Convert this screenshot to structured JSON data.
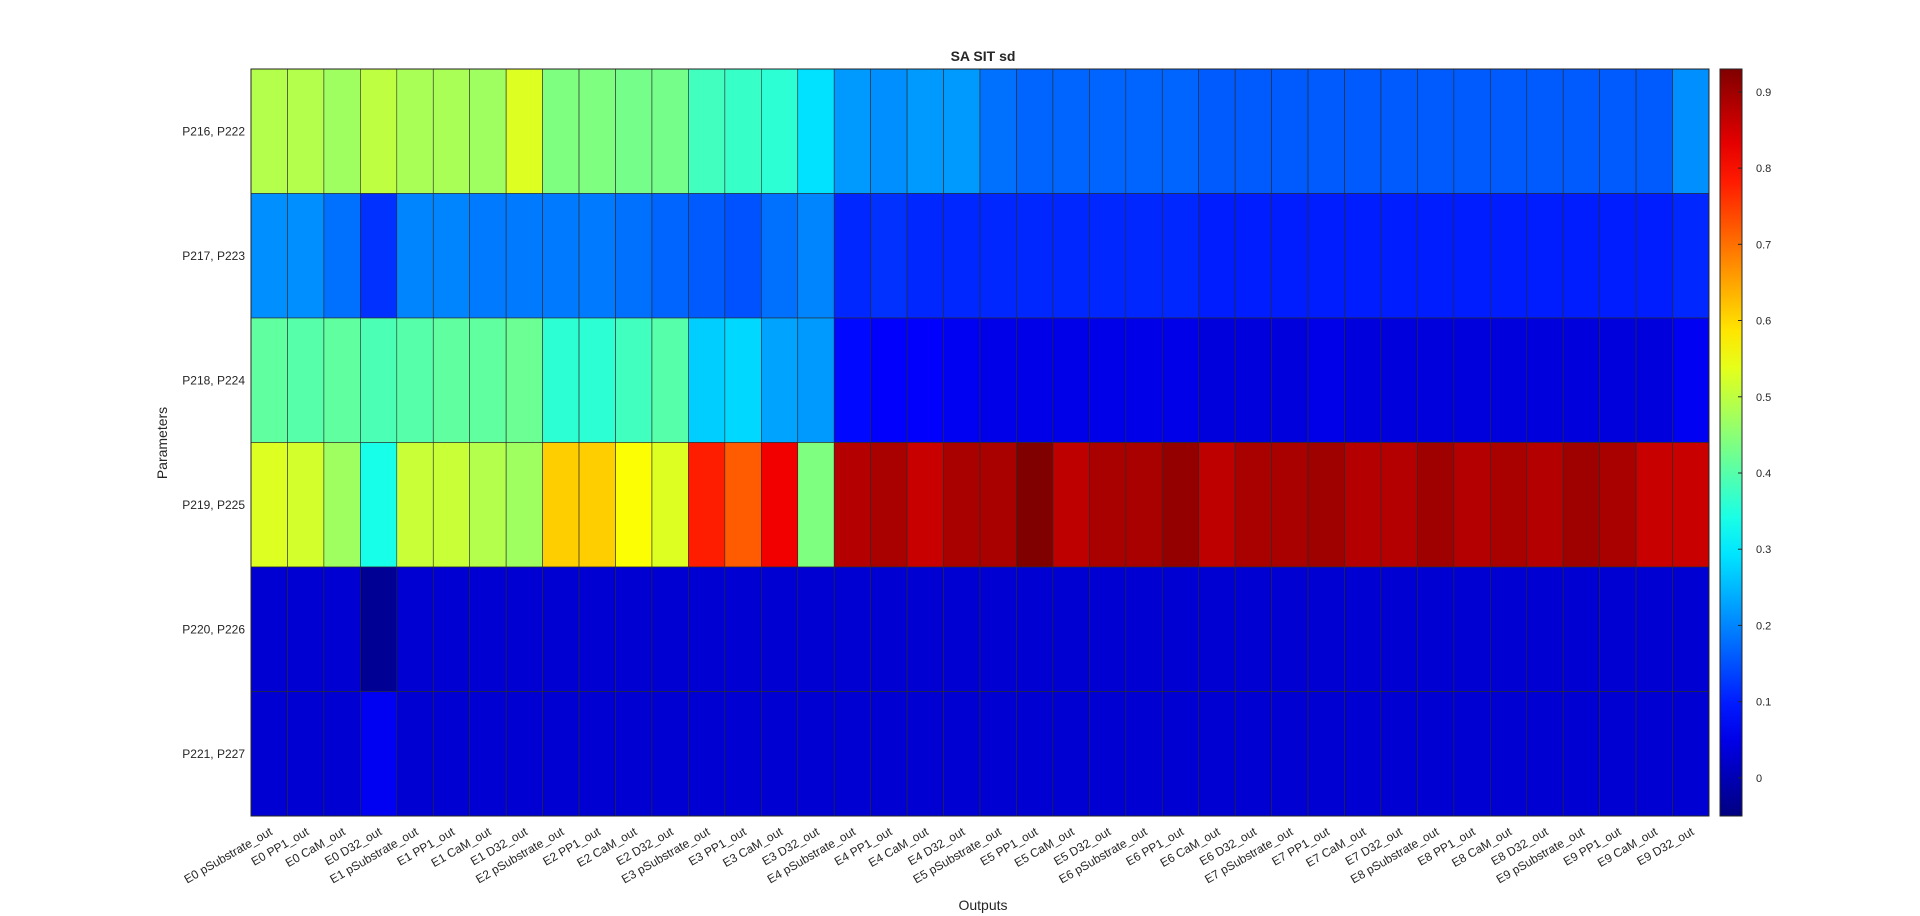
{
  "chart_data": {
    "type": "heatmap",
    "title": "SA SIT sd",
    "xlabel": "Outputs",
    "ylabel": "Parameters",
    "colormap": "jet",
    "clim": [
      -0.05,
      0.93
    ],
    "colorbar_ticks": [
      "0",
      "0.1",
      "0.2",
      "0.3",
      "0.4",
      "0.5",
      "0.6",
      "0.7",
      "0.8",
      "0.9"
    ],
    "colorbar_tick_values": [
      0,
      0.1,
      0.2,
      0.3,
      0.4,
      0.5,
      0.6,
      0.7,
      0.8,
      0.9
    ],
    "grid": "cell borders",
    "legend": "colorbar right",
    "x_categories": [
      "E0 pSubstrate_out",
      "E0 PP1_out",
      "E0 CaM_out",
      "E0 D32_out",
      "E1 pSubstrate_out",
      "E1 PP1_out",
      "E1 CaM_out",
      "E1 D32_out",
      "E2 pSubstrate_out",
      "E2 PP1_out",
      "E2 CaM_out",
      "E2 D32_out",
      "E3 pSubstrate_out",
      "E3 PP1_out",
      "E3 CaM_out",
      "E3 D32_out",
      "E4 pSubstrate_out",
      "E4 PP1_out",
      "E4 CaM_out",
      "E4 D32_out",
      "E5 pSubstrate_out",
      "E5 PP1_out",
      "E5 CaM_out",
      "E5 D32_out",
      "E6 pSubstrate_out",
      "E6 PP1_out",
      "E6 CaM_out",
      "E6 D32_out",
      "E7 pSubstrate_out",
      "E7 PP1_out",
      "E7 CaM_out",
      "E7 D32_out",
      "E8 pSubstrate_out",
      "E8 PP1_out",
      "E8 CaM_out",
      "E8 D32_out",
      "E9 pSubstrate_out",
      "E9 PP1_out",
      "E9 CaM_out",
      "E9 D32_out"
    ],
    "y_categories": [
      "P216, P222",
      "P217, P223",
      "P218, P224",
      "P219, P225",
      "P220, P226",
      "P221, P227"
    ],
    "values": [
      [
        0.49,
        0.49,
        0.47,
        0.5,
        0.48,
        0.48,
        0.47,
        0.53,
        0.44,
        0.44,
        0.43,
        0.43,
        0.38,
        0.37,
        0.36,
        0.29,
        0.22,
        0.21,
        0.22,
        0.22,
        0.18,
        0.17,
        0.17,
        0.17,
        0.17,
        0.17,
        0.16,
        0.16,
        0.16,
        0.16,
        0.16,
        0.16,
        0.16,
        0.16,
        0.16,
        0.16,
        0.16,
        0.16,
        0.16,
        0.21
      ],
      [
        0.21,
        0.21,
        0.18,
        0.12,
        0.2,
        0.2,
        0.19,
        0.19,
        0.19,
        0.19,
        0.18,
        0.17,
        0.16,
        0.15,
        0.18,
        0.2,
        0.11,
        0.12,
        0.11,
        0.11,
        0.11,
        0.11,
        0.11,
        0.11,
        0.11,
        0.11,
        0.1,
        0.1,
        0.1,
        0.1,
        0.1,
        0.1,
        0.1,
        0.1,
        0.1,
        0.1,
        0.1,
        0.1,
        0.1,
        0.11
      ],
      [
        0.41,
        0.4,
        0.41,
        0.39,
        0.4,
        0.41,
        0.41,
        0.42,
        0.36,
        0.36,
        0.38,
        0.4,
        0.27,
        0.28,
        0.23,
        0.22,
        0.08,
        0.07,
        0.07,
        0.06,
        0.05,
        0.05,
        0.05,
        0.05,
        0.05,
        0.05,
        0.04,
        0.04,
        0.04,
        0.05,
        0.04,
        0.04,
        0.04,
        0.04,
        0.04,
        0.04,
        0.04,
        0.04,
        0.04,
        0.06
      ],
      [
        0.53,
        0.52,
        0.47,
        0.34,
        0.51,
        0.51,
        0.49,
        0.47,
        0.61,
        0.61,
        0.56,
        0.53,
        0.78,
        0.72,
        0.82,
        0.44,
        0.88,
        0.89,
        0.86,
        0.89,
        0.89,
        0.93,
        0.87,
        0.89,
        0.89,
        0.91,
        0.87,
        0.89,
        0.89,
        0.9,
        0.88,
        0.88,
        0.9,
        0.88,
        0.89,
        0.88,
        0.9,
        0.89,
        0.86,
        0.86
      ],
      [
        0.03,
        0.03,
        0.03,
        -0.03,
        0.03,
        0.03,
        0.03,
        0.03,
        0.03,
        0.03,
        0.03,
        0.03,
        0.03,
        0.03,
        0.03,
        0.03,
        0.03,
        0.03,
        0.03,
        0.03,
        0.03,
        0.03,
        0.03,
        0.03,
        0.03,
        0.03,
        0.03,
        0.03,
        0.03,
        0.03,
        0.03,
        0.03,
        0.03,
        0.03,
        0.03,
        0.03,
        0.03,
        0.03,
        0.03,
        0.03
      ],
      [
        0.03,
        0.03,
        0.03,
        0.06,
        0.03,
        0.03,
        0.03,
        0.03,
        0.03,
        0.03,
        0.03,
        0.03,
        0.03,
        0.03,
        0.03,
        0.03,
        0.03,
        0.03,
        0.03,
        0.03,
        0.03,
        0.03,
        0.03,
        0.03,
        0.03,
        0.03,
        0.03,
        0.03,
        0.03,
        0.03,
        0.03,
        0.03,
        0.03,
        0.03,
        0.03,
        0.03,
        0.03,
        0.03,
        0.03,
        0.03
      ]
    ]
  }
}
